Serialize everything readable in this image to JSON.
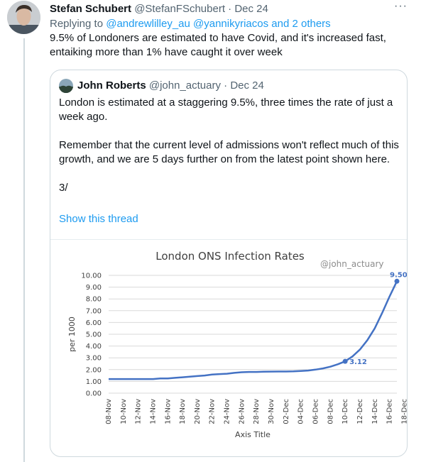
{
  "tweet": {
    "author_name": "Stefan Schubert",
    "author_handle": "@StefanFSchubert",
    "separator": "·",
    "date": "Dec 24",
    "more_label": "···",
    "reply_prefix": "Replying to",
    "reply_users": "@andrewlilley_au @yannikyriacos and 2 others",
    "text": "9.5% of Londoners are estimated to have Covid, and it's increased fast, entaiking more than 1% have caught it over week"
  },
  "quote": {
    "author_name": "John Roberts",
    "author_handle": "@john_actuary",
    "separator": "·",
    "date": "Dec 24",
    "text": "London is estimated at a staggering 9.5%, three times the rate of just a week ago.\n\nRemember that the current level of admissions won't reflect much of this growth, and we are 5 days further on from the latest point shown here.\n\n3/",
    "show_thread": "Show this thread"
  },
  "chart_data": {
    "type": "line",
    "title": "London ONS Infection Rates",
    "watermark": "@john_actuary",
    "xlabel": "Axis Title",
    "ylabel": "per 1000",
    "ylim": [
      0,
      10
    ],
    "yticks": [
      "0.00",
      "1.00",
      "2.00",
      "3.00",
      "4.00",
      "5.00",
      "6.00",
      "7.00",
      "8.00",
      "9.00",
      "10.00"
    ],
    "x_tick_labels": [
      "08-Nov",
      "10-Nov",
      "12-Nov",
      "14-Nov",
      "16-Nov",
      "18-Nov",
      "20-Nov",
      "22-Nov",
      "24-Nov",
      "26-Nov",
      "28-Nov",
      "30-Nov",
      "02-Dec",
      "04-Dec",
      "06-Dec",
      "08-Dec",
      "10-Dec",
      "12-Dec",
      "14-Dec",
      "16-Dec",
      "18-Dec"
    ],
    "grid": true,
    "line_color": "#4472c4",
    "series": [
      {
        "values": [
          1.2,
          1.2,
          1.2,
          1.2,
          1.2,
          1.2,
          1.2,
          1.25,
          1.25,
          1.3,
          1.35,
          1.4,
          1.45,
          1.5,
          1.58,
          1.62,
          1.65,
          1.72,
          1.78,
          1.8,
          1.8,
          1.82,
          1.83,
          1.84,
          1.84,
          1.85,
          1.88,
          1.92,
          2.0,
          2.1,
          2.25,
          2.45,
          2.7,
          3.12,
          3.7,
          4.5,
          5.5,
          6.8,
          8.2,
          9.5
        ]
      }
    ],
    "annotations": [
      {
        "date_index": 33,
        "label": "3.12"
      },
      {
        "date_index": 40,
        "label": "9.50"
      }
    ]
  }
}
